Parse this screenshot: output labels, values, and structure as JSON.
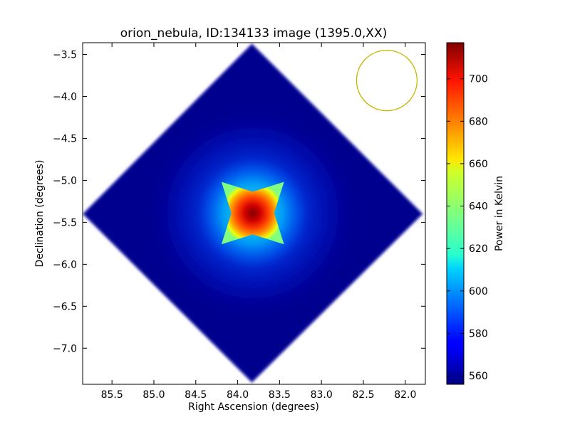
{
  "chart_data": {
    "type": "heatmap",
    "title": "orion_nebula, ID:134133 image (1395.0,XX)",
    "xlabel": "Right Ascension (degrees)",
    "ylabel": "Declination (degrees)",
    "colorbar_label": "Power in Kelvin",
    "xlim": [
      85.85,
      81.76
    ],
    "ylim": [
      -7.43,
      -3.36
    ],
    "x_inverted": true,
    "x_ticks": [
      85.5,
      85.0,
      84.5,
      84.0,
      83.5,
      83.0,
      82.5,
      82.0
    ],
    "x_tick_labels": [
      "85.5",
      "85.0",
      "84.5",
      "84.0",
      "83.5",
      "83.0",
      "82.5",
      "82.0"
    ],
    "y_ticks": [
      -3.5,
      -4.0,
      -4.5,
      -5.0,
      -5.5,
      -6.0,
      -6.5,
      -7.0
    ],
    "y_tick_labels": [
      "−3.5",
      "−4.0",
      "−4.5",
      "−5.0",
      "−5.5",
      "−6.0",
      "−6.5",
      "−7.0"
    ],
    "colorbar_range": [
      556,
      717
    ],
    "colorbar_ticks": [
      560,
      580,
      600,
      620,
      640,
      660,
      680,
      700
    ],
    "colorbar_tick_labels": [
      "560",
      "580",
      "600",
      "620",
      "640",
      "660",
      "680",
      "700"
    ],
    "colormap": "jet",
    "map": {
      "footprint_corners": [
        {
          "ra": 83.83,
          "dec": -3.38
        },
        {
          "ra": 81.8,
          "dec": -5.4
        },
        {
          "ra": 83.83,
          "dec": -7.4
        },
        {
          "ra": 85.84,
          "dec": -5.4
        }
      ],
      "background_kelvin": 562,
      "peak": {
        "ra": 83.82,
        "dec": -5.39,
        "kelvin": 716
      }
    },
    "beam_circle": {
      "ra": 82.22,
      "dec": -3.81,
      "radius_deg": 0.36,
      "color": "#c8b400"
    },
    "grid": false,
    "legend": "none"
  }
}
